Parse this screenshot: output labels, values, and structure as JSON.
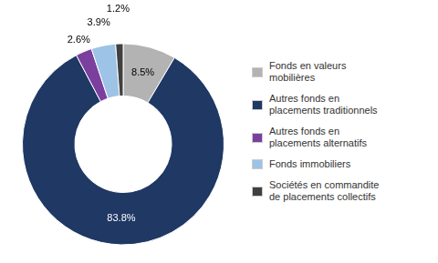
{
  "chart_data": {
    "type": "doughnut",
    "categories": [
      "Fonds en valeurs\nmobilières",
      "Autres fonds en\nplacements traditionnels",
      "Autres fonds en\nplacements alternatifs",
      "Fonds immobiliers",
      "Sociétés en commandite\nde placements collectifs"
    ],
    "values": [
      8.5,
      83.8,
      2.6,
      3.9,
      1.2
    ],
    "value_labels": [
      "8.5%",
      "83.8%",
      "2.6%",
      "3.9%",
      "1.2%"
    ],
    "colors": [
      "#b3b3b3",
      "#1f3864",
      "#7b3f9e",
      "#9dc3e6",
      "#404040"
    ],
    "data_labels": true,
    "legend": "right"
  }
}
